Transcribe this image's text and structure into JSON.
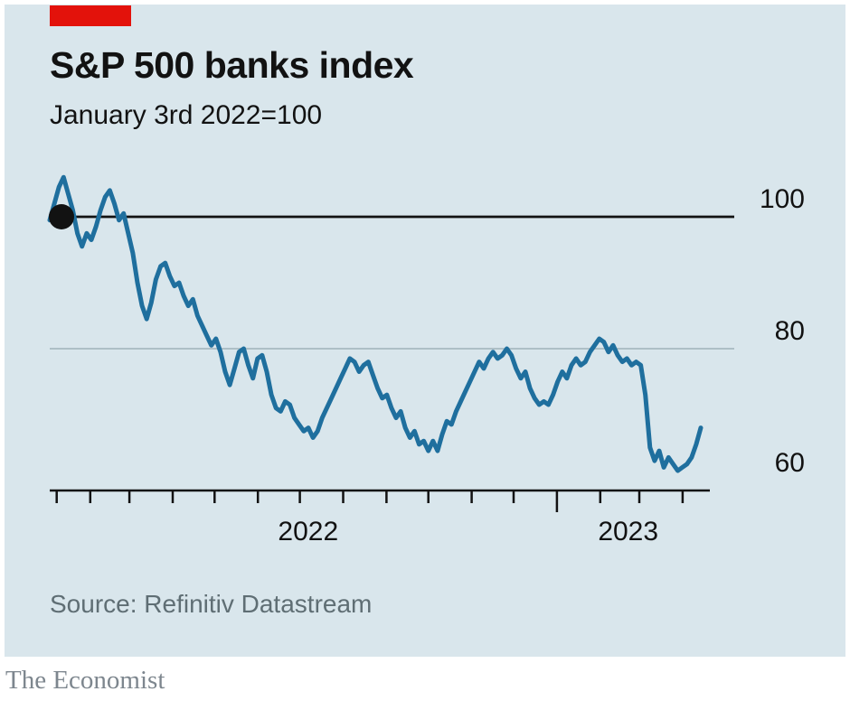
{
  "header": {
    "title": "S&P 500 banks index",
    "subtitle": "January 3rd 2022=100"
  },
  "source": "Source: Refinitiv Datastream",
  "brand": "The Economist",
  "colors": {
    "background": "#d9e6ec",
    "line": "#1f6f9e",
    "red_tab": "#e3120b",
    "grid_dark": "#121212",
    "grid_light": "#aebfc6",
    "axis": "#121212",
    "text": "#121212",
    "source_text": "#5f6e74",
    "brand_text": "#7d868e"
  },
  "chart_data": {
    "type": "line",
    "title": "S&P 500 banks index",
    "subtitle": "January 3rd 2022=100",
    "ylim": [
      58,
      107
    ],
    "grid": true,
    "y_ticks": [
      {
        "value": 100,
        "label": "100",
        "line": "dark"
      },
      {
        "value": 80,
        "label": "80",
        "line": "light"
      },
      {
        "value": 60,
        "label": "60",
        "line": "none"
      }
    ],
    "x_axis": {
      "span_days": 466,
      "month_tick_days": [
        5,
        29,
        57,
        88,
        118,
        149,
        179,
        210,
        241,
        271,
        302,
        332,
        363,
        394,
        422,
        453
      ],
      "long_tick_day": 363,
      "year_labels": [
        {
          "label": "2022",
          "day": 185
        },
        {
          "label": "2023",
          "day": 414
        }
      ]
    },
    "start_marker": {
      "value": 100,
      "note": "black dot at index start, January 3rd 2022 = 100"
    },
    "series": [
      {
        "name": "S&P 500 banks index",
        "values": [
          99.5,
          102,
          104.5,
          106,
          103.5,
          101,
          97.5,
          95.5,
          97.5,
          96.5,
          98.5,
          101,
          103,
          104,
          102,
          99.5,
          100.5,
          97.5,
          94.5,
          90,
          86.5,
          84.5,
          87,
          90.5,
          92.5,
          93,
          91,
          89.5,
          90,
          88,
          86.5,
          87.5,
          85,
          83.5,
          82,
          80.5,
          81.5,
          79.5,
          76.5,
          74.5,
          77,
          79.5,
          80,
          77.5,
          75.5,
          78.5,
          79,
          76.5,
          73,
          71,
          70.5,
          72,
          71.5,
          69.5,
          68.5,
          67.5,
          68,
          66.5,
          67.5,
          69.5,
          71,
          72.5,
          74,
          75.5,
          77,
          78.5,
          78,
          76.5,
          77.5,
          78,
          76,
          74,
          72.5,
          73,
          71,
          69.5,
          70.5,
          68,
          66.5,
          67.5,
          65.5,
          66,
          64.5,
          66,
          64.5,
          67,
          69,
          68.5,
          70.5,
          72,
          73.5,
          75,
          76.5,
          78,
          77,
          78.5,
          79.5,
          78.5,
          79,
          80,
          79,
          77,
          75.5,
          76.5,
          74,
          72.5,
          71.5,
          72,
          71.5,
          73,
          75,
          76.5,
          75.5,
          77.5,
          78.5,
          77.5,
          78,
          79.5,
          80.5,
          81.5,
          81,
          79.5,
          80.5,
          79,
          78,
          78.5,
          77.5,
          78,
          77.5,
          73,
          65,
          63,
          64.5,
          62,
          63.5,
          62.5,
          61.5,
          62,
          62.5,
          63.5,
          65.5,
          68
        ]
      }
    ]
  }
}
